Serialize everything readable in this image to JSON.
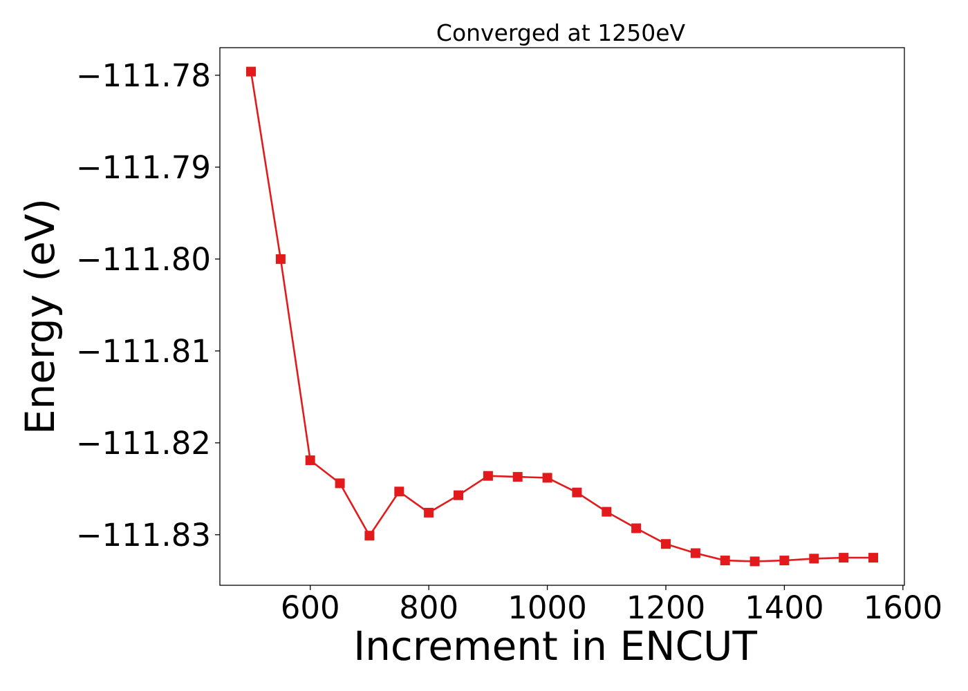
{
  "chart_data": {
    "type": "line",
    "title": "Converged at 1250eV",
    "xlabel": "Increment in ENCUT",
    "ylabel": "Energy (eV)",
    "x": [
      500,
      550,
      600,
      650,
      700,
      750,
      800,
      850,
      900,
      950,
      1000,
      1050,
      1100,
      1150,
      1200,
      1250,
      1300,
      1350,
      1400,
      1450,
      1500,
      1550
    ],
    "series": [
      {
        "name": "",
        "color": "#e31a1c",
        "marker": "square",
        "values": [
          -111.7796,
          -111.8,
          -111.8219,
          -111.8244,
          -111.8301,
          -111.8253,
          -111.8276,
          -111.8257,
          -111.8236,
          -111.8237,
          -111.8238,
          -111.8254,
          -111.8275,
          -111.8293,
          -111.831,
          -111.832,
          -111.8328,
          -111.8329,
          -111.8328,
          -111.8326,
          -111.8325,
          -111.8325
        ]
      }
    ],
    "xticks": [
      600,
      800,
      1000,
      1200,
      1400,
      1600
    ],
    "yticks": [
      -111.78,
      -111.79,
      -111.8,
      -111.81,
      -111.82,
      -111.83
    ],
    "ytick_labels": [
      "−111.78",
      "−111.79",
      "−111.80",
      "−111.81",
      "−111.82",
      "−111.83"
    ],
    "xlim": [
      447.5,
      1602.5
    ],
    "ylim": [
      -111.8355,
      -111.777
    ],
    "grid": false,
    "legend": "none"
  }
}
